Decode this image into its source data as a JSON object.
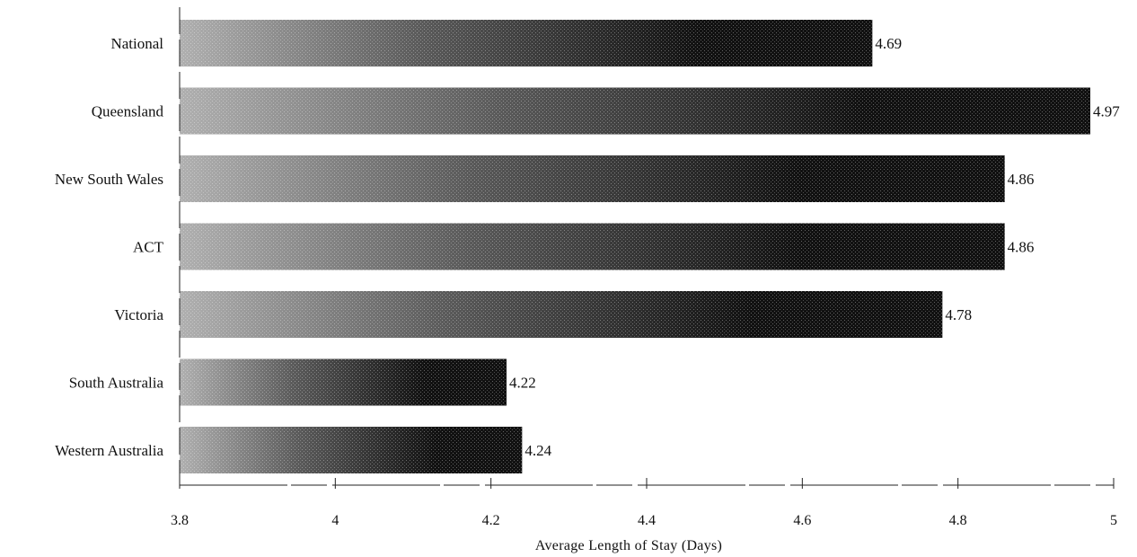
{
  "chart_data": {
    "type": "bar",
    "orientation": "horizontal",
    "categories": [
      "National",
      "Queensland",
      "New South Wales",
      "ACT",
      "Victoria",
      "South Australia",
      "Western Australia"
    ],
    "values": [
      4.69,
      4.97,
      4.86,
      4.86,
      4.78,
      4.22,
      4.24
    ],
    "data_labels": [
      "4.69",
      "4.97",
      "4.86",
      "4.86",
      "4.78",
      "4.22",
      "4.24"
    ],
    "xlabel": "Average Length of Stay (Days)",
    "xlim": [
      3.8,
      5
    ],
    "xticks": [
      3.8,
      4,
      4.2,
      4.4,
      4.6,
      4.8,
      5
    ],
    "xtick_labels": [
      "3.8",
      "4",
      "4.2",
      "4.4",
      "4.6",
      "4.8",
      "5"
    ],
    "grid": false,
    "legend": "none",
    "colors": {
      "bar_fill": "#111111",
      "bar_gradient_start": "#b0b0b0",
      "text": "#111111",
      "axis": "#222222"
    }
  }
}
